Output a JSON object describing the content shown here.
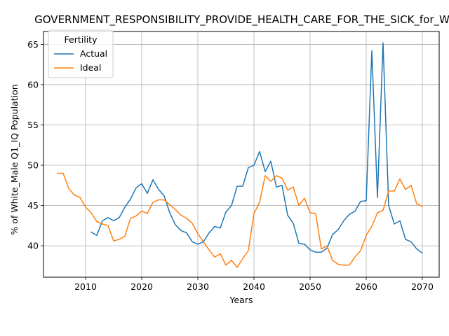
{
  "chart_data": {
    "type": "line",
    "title": "GOVERNMENT_RESPONSIBILITY_PROVIDE_HEALTH_CARE_FOR_THE_SICK_for_W",
    "xlabel": "Years",
    "ylabel": "% of White_Male Q1_IQ Population",
    "xlim": [
      2002.5,
      2073
    ],
    "ylim": [
      36.1,
      66.6
    ],
    "xticks": [
      2010,
      2020,
      2030,
      2040,
      2050,
      2060,
      2070
    ],
    "yticks": [
      40,
      45,
      50,
      55,
      60,
      65
    ],
    "grid": true,
    "legend": {
      "title": "Fertility",
      "placement": "upper-left"
    },
    "series": [
      {
        "name": "Actual",
        "color": "#1f77b4",
        "x": [
          2011,
          2012,
          2013,
          2014,
          2015,
          2016,
          2017,
          2018,
          2019,
          2020,
          2021,
          2022,
          2023,
          2024,
          2025,
          2026,
          2027,
          2028,
          2029,
          2030,
          2031,
          2032,
          2033,
          2034,
          2035,
          2036,
          2037,
          2038,
          2039,
          2040,
          2041,
          2042,
          2043,
          2044,
          2045,
          2046,
          2047,
          2048,
          2049,
          2050,
          2051,
          2052,
          2053,
          2054,
          2055,
          2056,
          2057,
          2058,
          2059,
          2060,
          2061,
          2062,
          2063,
          2064,
          2065,
          2066,
          2067,
          2068,
          2069,
          2070
        ],
        "y": [
          41.7,
          41.3,
          43.1,
          43.5,
          43.1,
          43.5,
          44.8,
          45.8,
          47.2,
          47.7,
          46.5,
          48.2,
          47.0,
          46.2,
          44.1,
          42.6,
          41.9,
          41.6,
          40.5,
          40.2,
          40.5,
          41.6,
          42.4,
          42.2,
          44.2,
          45.0,
          47.4,
          47.4,
          49.7,
          50.0,
          51.7,
          49.2,
          50.5,
          47.3,
          47.5,
          43.8,
          42.8,
          40.3,
          40.2,
          39.5,
          39.2,
          39.2,
          39.7,
          41.4,
          42.0,
          43.1,
          43.9,
          44.3,
          45.5,
          45.6,
          64.2,
          46.0,
          65.2,
          45.0,
          42.7,
          43.1,
          40.8,
          40.5,
          39.6,
          39.1
        ]
      },
      {
        "name": "Ideal",
        "color": "#ff7f0e",
        "x": [
          2005,
          2006,
          2007,
          2008,
          2009,
          2010,
          2011,
          2012,
          2013,
          2014,
          2015,
          2016,
          2017,
          2018,
          2019,
          2020,
          2021,
          2022,
          2023,
          2024,
          2025,
          2026,
          2027,
          2028,
          2029,
          2030,
          2031,
          2032,
          2033,
          2034,
          2035,
          2036,
          2037,
          2038,
          2039,
          2040,
          2041,
          2042,
          2043,
          2044,
          2045,
          2046,
          2047,
          2048,
          2049,
          2050,
          2051,
          2052,
          2053,
          2054,
          2055,
          2056,
          2057,
          2058,
          2059,
          2060,
          2061,
          2062,
          2063,
          2064,
          2065,
          2066,
          2067,
          2068,
          2069,
          2070
        ],
        "y": [
          49.0,
          49.0,
          47.1,
          46.3,
          46.0,
          44.8,
          44.1,
          43.0,
          42.7,
          42.5,
          40.6,
          40.8,
          41.2,
          43.4,
          43.7,
          44.3,
          44.0,
          45.4,
          45.7,
          45.7,
          45.1,
          44.5,
          43.8,
          43.4,
          42.8,
          41.5,
          40.5,
          39.5,
          38.6,
          39.0,
          37.6,
          38.2,
          37.3,
          38.4,
          39.4,
          44.0,
          45.4,
          48.7,
          48.0,
          48.7,
          48.4,
          46.9,
          47.3,
          45.0,
          45.9,
          44.1,
          44.0,
          39.6,
          40.0,
          38.2,
          37.7,
          37.6,
          37.6,
          38.6,
          39.4,
          41.3,
          42.4,
          44.1,
          44.4,
          46.8,
          46.8,
          48.3,
          47.0,
          47.5,
          45.2,
          44.9
        ]
      }
    ]
  }
}
